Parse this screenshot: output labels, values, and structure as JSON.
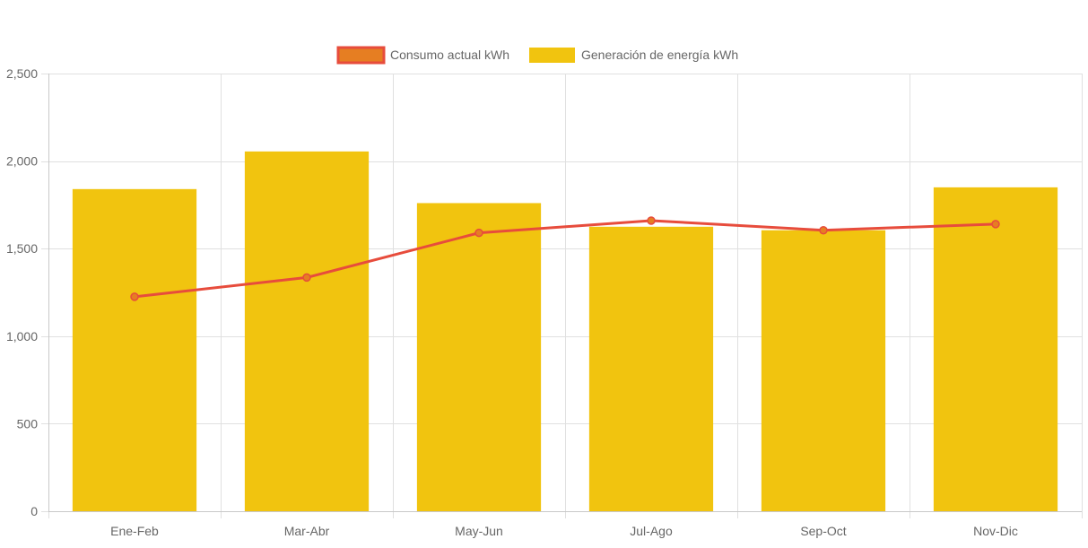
{
  "chart_data": {
    "type": "bar",
    "categories": [
      "Ene-Feb",
      "Mar-Abr",
      "May-Jun",
      "Jul-Ago",
      "Sep-Oct",
      "Nov-Dic"
    ],
    "ylim": [
      0,
      2500
    ],
    "y_ticks": [
      0,
      500,
      1000,
      1500,
      2000,
      2500
    ],
    "y_tick_labels": [
      "0",
      "500",
      "1,000",
      "1,500",
      "2,000",
      "2,500"
    ],
    "grid": true,
    "legend_position": "top",
    "series": [
      {
        "name": "Consumo actual kWh",
        "type": "line",
        "color": "#e74c3c",
        "fill_color": "#e67e22",
        "values": [
          1225,
          1335,
          1590,
          1660,
          1605,
          1640
        ]
      },
      {
        "name": "Generación de energía kWh",
        "type": "bar",
        "color": "#f1c40f",
        "values": [
          1840,
          2055,
          1760,
          1625,
          1605,
          1850
        ]
      }
    ]
  }
}
